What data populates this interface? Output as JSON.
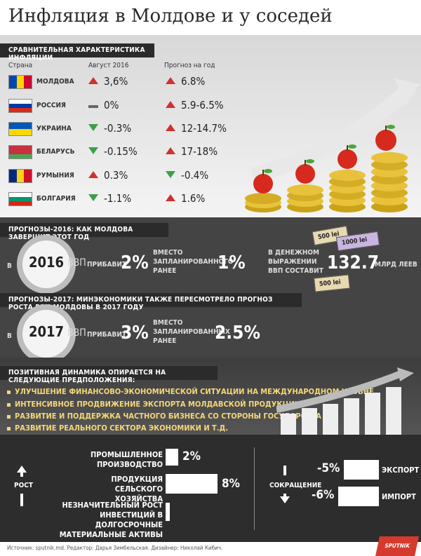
{
  "title": "Инфляция в Молдове и у соседей",
  "section1": {
    "heading": "СРАВНИТЕЛЬНАЯ ХАРАКТЕРИСТИКА ИНФЛЯЦИИ",
    "col_country": "Страна",
    "col_august": "Август 2016",
    "col_forecast": "Прогноз на год",
    "rows": [
      {
        "country": "МОЛДОВА",
        "aug": "3,6%",
        "aug_dir": "up",
        "forecast": "6.8%",
        "forecast_dir": "up"
      },
      {
        "country": "РОССИЯ",
        "aug": "0%",
        "aug_dir": "flat",
        "forecast": "5.9-6.5%",
        "forecast_dir": "up"
      },
      {
        "country": "УКРАИНА",
        "aug": "-0.3%",
        "aug_dir": "down",
        "forecast": "12-14.7%",
        "forecast_dir": "up"
      },
      {
        "country": "БЕЛАРУСЬ",
        "aug": "-0.15%",
        "aug_dir": "down",
        "forecast": "17-18%",
        "forecast_dir": "up"
      },
      {
        "country": "РУМЫНИЯ",
        "aug": "0.3%",
        "aug_dir": "up",
        "forecast": "-0.4%",
        "forecast_dir": "down"
      },
      {
        "country": "БОЛГАРИЯ",
        "aug": "-1.1%",
        "aug_dir": "down",
        "forecast": "1.6%",
        "forecast_dir": "up"
      }
    ]
  },
  "section2": {
    "heading1": "ПРОГНОЗЫ-2016: КАК МОЛДОВА ЗАВЕРШИТ ЭТОТ ГОД",
    "in_label": "В",
    "year1": "2016",
    "gdp": "ВВП",
    "adds": "ПРИБАВИТ",
    "value1": "2%",
    "instead1": "ВМЕСТО ЗАПЛАНИРОВАННОГО РАНЕЕ",
    "planned1": "1%",
    "money_label": "В ДЕНЕЖНОМ ВЫРАЖЕНИИ ВВП СОСТАВИТ",
    "money_value": "132.7",
    "money_unit": "МЛРД ЛЕЕВ",
    "note1": "500 lei",
    "note2": "1000 lei",
    "note3": "500 lei",
    "heading2": "ПРОГНОЗЫ-2017: МИНЭКОНОМИКИ ТАКЖЕ ПЕРЕСМОТРЕЛО ПРОГНОЗ РОСТА ВВП МОЛДОВЫ В 2017 ГОДУ",
    "year2": "2017",
    "value2": "3%",
    "instead2": "ВМЕСТО ЗАПЛАНИРОВАННЫХ РАНЕЕ",
    "planned2": "2.5%"
  },
  "section3": {
    "heading": "ПОЗИТИВНАЯ ДИНАМИКА ОПИРАЕТСЯ НА СЛЕДУЮЩИЕ ПРЕДПОЛОЖЕНИЯ:",
    "bullets": [
      "УЛУЧШЕНИЕ ФИНАНСОВО-ЭКОНОМИЧЕСКОЙ СИТУАЦИИ НА МЕЖДУНАРОДНОМ УРОВНЕ",
      "ИНТЕНСИВНОЕ ПРОДВИЖЕНИЕ ЭКСПОРТА МОЛДАВСКОЙ ПРОДУКЦИИ",
      "РАЗВИТИЕ И ПОДДЕРЖКА ЧАСТНОГО БИЗНЕСА СО СТОРОНЫ ГОСУДАРСТВА",
      "РАЗВИТИЕ РЕАЛЬНОГО СЕКТОРА ЭКОНОМИКИ И Т.Д."
    ]
  },
  "section4": {
    "growth_label": "РОСТ",
    "decline_label": "СОКРАЩЕНИЕ",
    "growth_items": [
      {
        "label": "ПРОМЫШЛЕННОЕ ПРОИЗВОДСТВО",
        "value": "2%"
      },
      {
        "label": "ПРОДУКЦИЯ СЕЛЬСКОГО ХОЗЯЙСТВА",
        "value": "8%"
      },
      {
        "label": "НЕЗНАЧИТЕЛЬНЫЙ РОСТ ИНВЕСТИЦИЙ В ДОЛГОСРОЧНЫЕ МАТЕРИАЛЬНЫЕ АКТИВЫ",
        "value": ""
      }
    ],
    "decline_items": [
      {
        "label": "ЭКСПОРТ",
        "value": "-5%"
      },
      {
        "label": "ИМПОРТ",
        "value": "-6%"
      }
    ]
  },
  "footer": {
    "source": "Источник: sputnik.md. Редактор: Дарья Зимбельская. Дизайнер: Николай Кибич.",
    "logo": "SPUTNIK"
  },
  "flags": {
    "moldova": [
      "#0046ae",
      "#ffd200",
      "#cc092f"
    ],
    "russia": [
      "#ffffff",
      "#0039a6",
      "#d52b1e"
    ],
    "ukraine": [
      "#0057b7",
      "#ffd700"
    ],
    "belarus": [
      "#c8313e",
      "#4aa657"
    ],
    "romania": [
      "#002b7f",
      "#fcd116",
      "#ce1126"
    ],
    "bulgaria": [
      "#ffffff",
      "#00966e",
      "#d62612"
    ]
  }
}
